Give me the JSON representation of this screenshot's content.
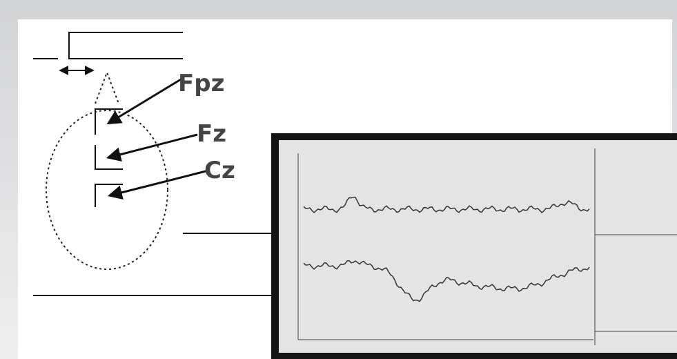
{
  "labels": {
    "fpz": "Fpz",
    "fz": "Fz",
    "cz": "Cz"
  }
}
